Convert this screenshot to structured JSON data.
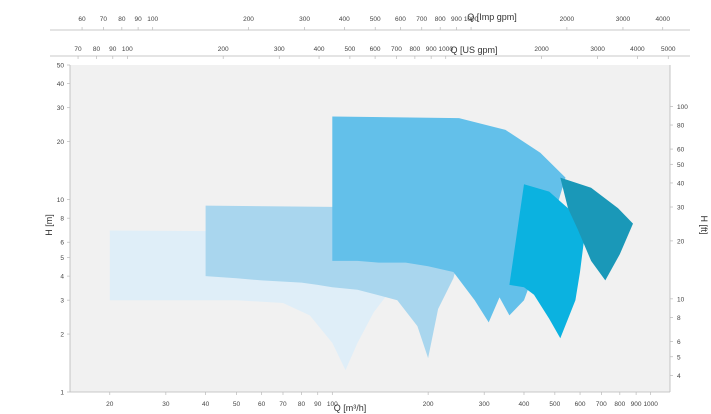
{
  "chart_data": {
    "type": "area",
    "title": "",
    "bottom_axis": {
      "label": "Q [m³/h]",
      "scale": "log",
      "range": [
        15,
        1150
      ],
      "ticks": [
        20,
        30,
        40,
        50,
        60,
        70,
        80,
        90,
        100,
        200,
        300,
        400,
        500,
        600,
        700,
        800,
        900,
        1000
      ]
    },
    "top_axis_imp": {
      "label": "Q [Imp gpm]",
      "scale": "log",
      "ticks": [
        60,
        70,
        80,
        90,
        100,
        200,
        300,
        400,
        500,
        600,
        700,
        800,
        900,
        1000,
        2000,
        3000,
        4000
      ]
    },
    "top_axis_us": {
      "label": "Q [US gpm]",
      "scale": "log",
      "ticks": [
        70,
        80,
        90,
        100,
        200,
        300,
        400,
        500,
        600,
        700,
        800,
        900,
        1000,
        2000,
        3000,
        4000,
        5000
      ]
    },
    "left_axis": {
      "label": "H [m]",
      "scale": "log",
      "range": [
        1,
        50
      ],
      "ticks": [
        1,
        2,
        3,
        4,
        5,
        6,
        8,
        10,
        20,
        30,
        40,
        50
      ]
    },
    "right_axis": {
      "label": "H [ft]",
      "scale": "log",
      "ticks": [
        4,
        5,
        6,
        8,
        10,
        20,
        30,
        40,
        50,
        60,
        80,
        100
      ]
    },
    "grid": false,
    "series": [
      {
        "color": "#dfeef8",
        "outline": [
          [
            20,
            6.9
          ],
          [
            100,
            6.8
          ],
          [
            120,
            6.1
          ],
          [
            140,
            4.8
          ],
          [
            155,
            3.5
          ],
          [
            135,
            2.6
          ],
          [
            120,
            1.8
          ],
          [
            110,
            1.3
          ],
          [
            100,
            1.8
          ],
          [
            85,
            2.5
          ],
          [
            70,
            2.9
          ],
          [
            50,
            3.0
          ],
          [
            30,
            3.0
          ],
          [
            20,
            3.0
          ]
        ]
      },
      {
        "color": "#a9d6ee",
        "outline": [
          [
            40,
            9.3
          ],
          [
            150,
            9.1
          ],
          [
            190,
            8.0
          ],
          [
            220,
            6.5
          ],
          [
            250,
            5.0
          ],
          [
            240,
            3.9
          ],
          [
            215,
            2.7
          ],
          [
            200,
            1.5
          ],
          [
            185,
            2.2
          ],
          [
            160,
            3.0
          ],
          [
            120,
            3.4
          ],
          [
            100,
            3.5
          ],
          [
            90,
            3.6
          ],
          [
            80,
            3.7
          ],
          [
            60,
            3.8
          ],
          [
            50,
            3.9
          ],
          [
            40,
            4.0
          ]
        ]
      },
      {
        "color": "#63c0ea",
        "outline": [
          [
            100,
            27.0
          ],
          [
            250,
            26.5
          ],
          [
            350,
            23.0
          ],
          [
            450,
            17.5
          ],
          [
            540,
            13.0
          ],
          [
            500,
            8.5
          ],
          [
            440,
            4.6
          ],
          [
            400,
            3.0
          ],
          [
            360,
            2.5
          ],
          [
            335,
            3.1
          ],
          [
            310,
            2.3
          ],
          [
            280,
            3.0
          ],
          [
            240,
            4.2
          ],
          [
            200,
            4.5
          ],
          [
            170,
            4.7
          ],
          [
            140,
            4.7
          ],
          [
            120,
            4.8
          ],
          [
            100,
            4.8
          ]
        ]
      },
      {
        "color": "#0bb2e0",
        "outline": [
          [
            400,
            12.0
          ],
          [
            480,
            11.0
          ],
          [
            550,
            9.0
          ],
          [
            620,
            6.5
          ],
          [
            600,
            4.2
          ],
          [
            580,
            3.0
          ],
          [
            520,
            1.9
          ],
          [
            480,
            2.4
          ],
          [
            430,
            3.2
          ],
          [
            400,
            3.5
          ],
          [
            360,
            3.6
          ]
        ]
      },
      {
        "color": "#1a98b8",
        "outline": [
          [
            520,
            13.0
          ],
          [
            650,
            11.5
          ],
          [
            790,
            9.0
          ],
          [
            880,
            7.5
          ],
          [
            800,
            5.2
          ],
          [
            720,
            3.8
          ],
          [
            650,
            4.8
          ],
          [
            590,
            7.0
          ],
          [
            550,
            9.0
          ]
        ]
      }
    ]
  }
}
